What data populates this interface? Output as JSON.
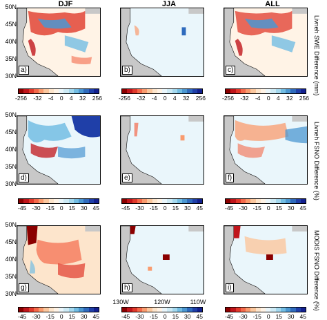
{
  "column_titles": [
    "DJF",
    "JJA",
    "ALL"
  ],
  "rows": [
    {
      "label": "Livneh SWE Difference (mm)",
      "panels": [
        "a)",
        "b)",
        "c)"
      ],
      "colorbar_ticks": [
        "-256",
        "-32",
        "-4",
        "0",
        "4",
        "32",
        "256"
      ]
    },
    {
      "label": "Livneh FSNO Difference (%)",
      "panels": [
        "d)",
        "e)",
        "f)"
      ],
      "colorbar_ticks": [
        "-45",
        "-30",
        "-15",
        "0",
        "15",
        "30",
        "45"
      ]
    },
    {
      "label": "MODIS FSNO Difference (%)",
      "panels": [
        "g)",
        "h)",
        "i)"
      ],
      "colorbar_ticks": [
        "-45",
        "-30",
        "-15",
        "0",
        "15",
        "30",
        "45"
      ]
    }
  ],
  "lat_ticks": [
    "50N",
    "45N",
    "40N",
    "35N",
    "30N"
  ],
  "lon_ticks": [
    "130W",
    "120W",
    "110W"
  ],
  "colors": {
    "ocean": "#c8c8c8",
    "scale": [
      "#8b0000",
      "#c0151b",
      "#e0392b",
      "#f4694a",
      "#f99b6e",
      "#fbc79e",
      "#fde5cc",
      "#fff3e6",
      "#eaf6fb",
      "#cdeaf5",
      "#a4d8ee",
      "#73bde3",
      "#4b97d1",
      "#2f6bbd",
      "#1f3fa8",
      "#12208f"
    ]
  }
}
